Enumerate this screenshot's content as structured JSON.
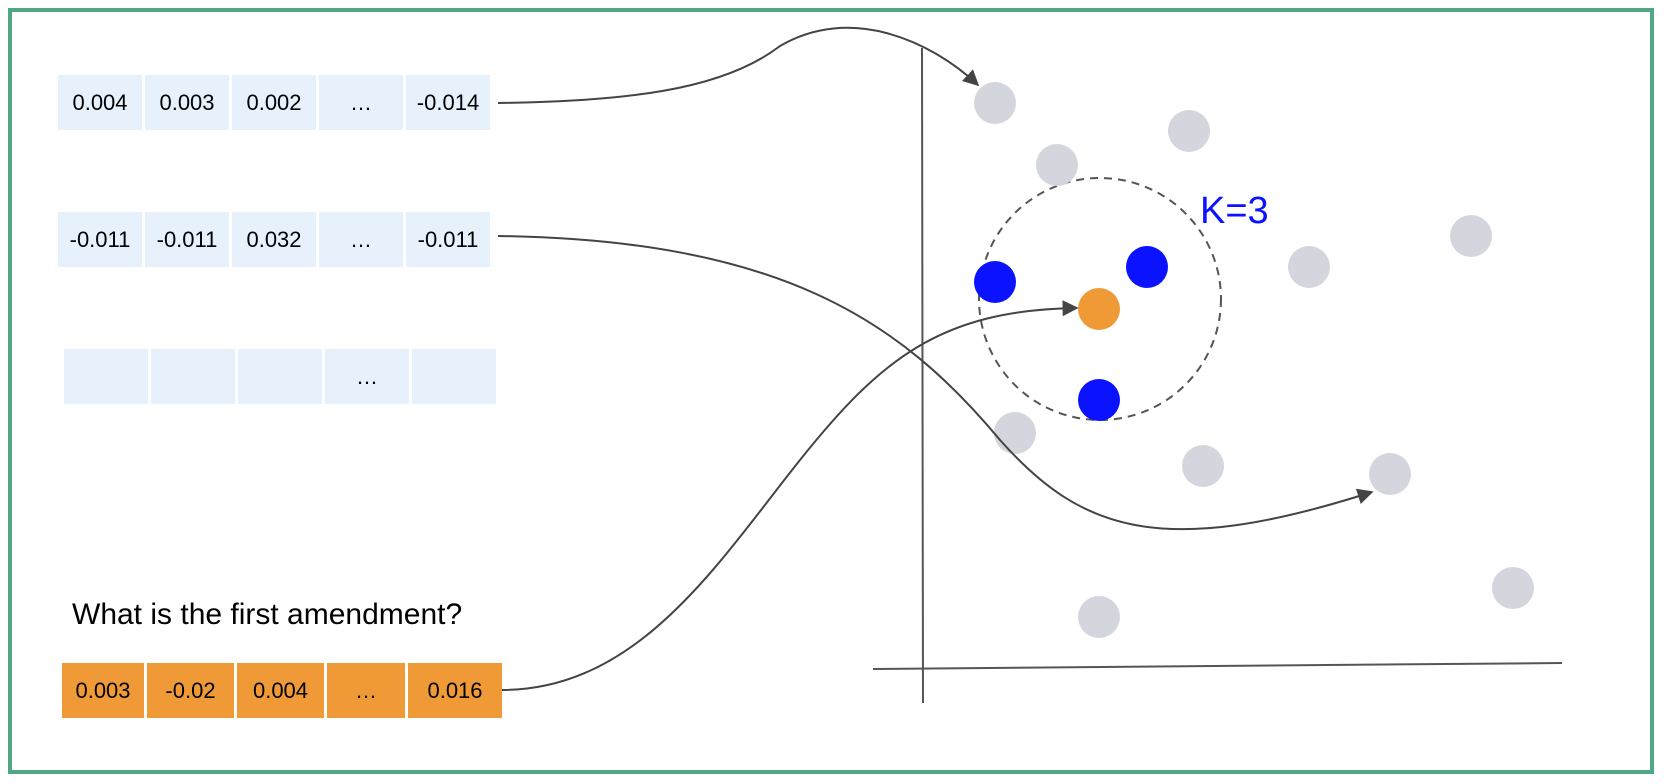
{
  "vectors": [
    {
      "id": "vec1",
      "cells": [
        "0.004",
        "0.003",
        "0.002",
        "…",
        "-0.014"
      ]
    },
    {
      "id": "vec2",
      "cells": [
        "-0.011",
        "-0.011",
        "0.032",
        "…",
        "-0.011"
      ]
    },
    {
      "id": "vec3",
      "cells": [
        "",
        "",
        "",
        "…",
        ""
      ]
    }
  ],
  "query": {
    "text": "What is the first amendment?",
    "cells": [
      "0.003",
      "-0.02",
      "0.004",
      "…",
      "0.016"
    ]
  },
  "k_label": "K=3",
  "colors": {
    "frame": "#4fa883",
    "cell_light": "#e6f1fc",
    "query_cell": "#f09a37",
    "point_gray": "#d3d6dc",
    "point_neighbor": "#0a12ff",
    "point_query": "#f09a37",
    "curve": "#444444"
  },
  "icons": {
    "arrowheads": "arrow-head-icon"
  }
}
